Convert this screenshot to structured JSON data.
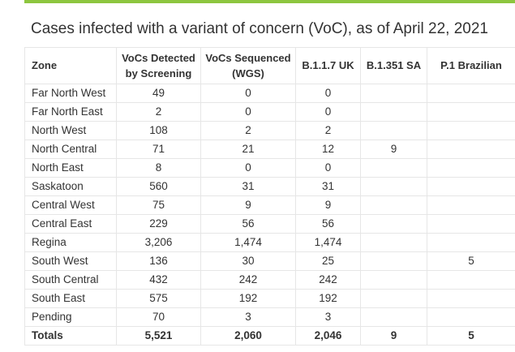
{
  "title": "Cases infected with a variant of concern (VoC), as of April 22, 2021",
  "headers": {
    "zone": "Zone",
    "screening": [
      "VoCs Detected",
      "by Screening"
    ],
    "sequenced": [
      "VoCs Sequenced",
      "(WGS)"
    ],
    "uk": "B.1.1.7 UK",
    "sa": "B.1.351 SA",
    "brazil": "P.1 Brazilian"
  },
  "rows": [
    {
      "zone": "Far North West",
      "screening": "49",
      "sequenced": "0",
      "uk": "0",
      "sa": "",
      "brazil": ""
    },
    {
      "zone": "Far North East",
      "screening": "2",
      "sequenced": "0",
      "uk": "0",
      "sa": "",
      "brazil": ""
    },
    {
      "zone": "North West",
      "screening": "108",
      "sequenced": "2",
      "uk": "2",
      "sa": "",
      "brazil": ""
    },
    {
      "zone": "North Central",
      "screening": "71",
      "sequenced": "21",
      "uk": "12",
      "sa": "9",
      "brazil": ""
    },
    {
      "zone": "North East",
      "screening": "8",
      "sequenced": "0",
      "uk": "0",
      "sa": "",
      "brazil": ""
    },
    {
      "zone": "Saskatoon",
      "screening": "560",
      "sequenced": "31",
      "uk": "31",
      "sa": "",
      "brazil": ""
    },
    {
      "zone": "Central West",
      "screening": "75",
      "sequenced": "9",
      "uk": "9",
      "sa": "",
      "brazil": ""
    },
    {
      "zone": "Central East",
      "screening": "229",
      "sequenced": "56",
      "uk": "56",
      "sa": "",
      "brazil": ""
    },
    {
      "zone": "Regina",
      "screening": "3,206",
      "sequenced": "1,474",
      "uk": "1,474",
      "sa": "",
      "brazil": ""
    },
    {
      "zone": "South West",
      "screening": "136",
      "sequenced": "30",
      "uk": "25",
      "sa": "",
      "brazil": "5"
    },
    {
      "zone": "South Central",
      "screening": "432",
      "sequenced": "242",
      "uk": "242",
      "sa": "",
      "brazil": ""
    },
    {
      "zone": "South East",
      "screening": "575",
      "sequenced": "192",
      "uk": "192",
      "sa": "",
      "brazil": ""
    },
    {
      "zone": "Pending",
      "screening": "70",
      "sequenced": "3",
      "uk": "3",
      "sa": "",
      "brazil": ""
    }
  ],
  "totals": {
    "zone": "Totals",
    "screening": "5,521",
    "sequenced": "2,060",
    "uk": "2,046",
    "sa": "9",
    "brazil": "5"
  },
  "colors": {
    "accent_rule": "#8dc63f",
    "grid": "#e6e6e6",
    "text": "#333333"
  }
}
